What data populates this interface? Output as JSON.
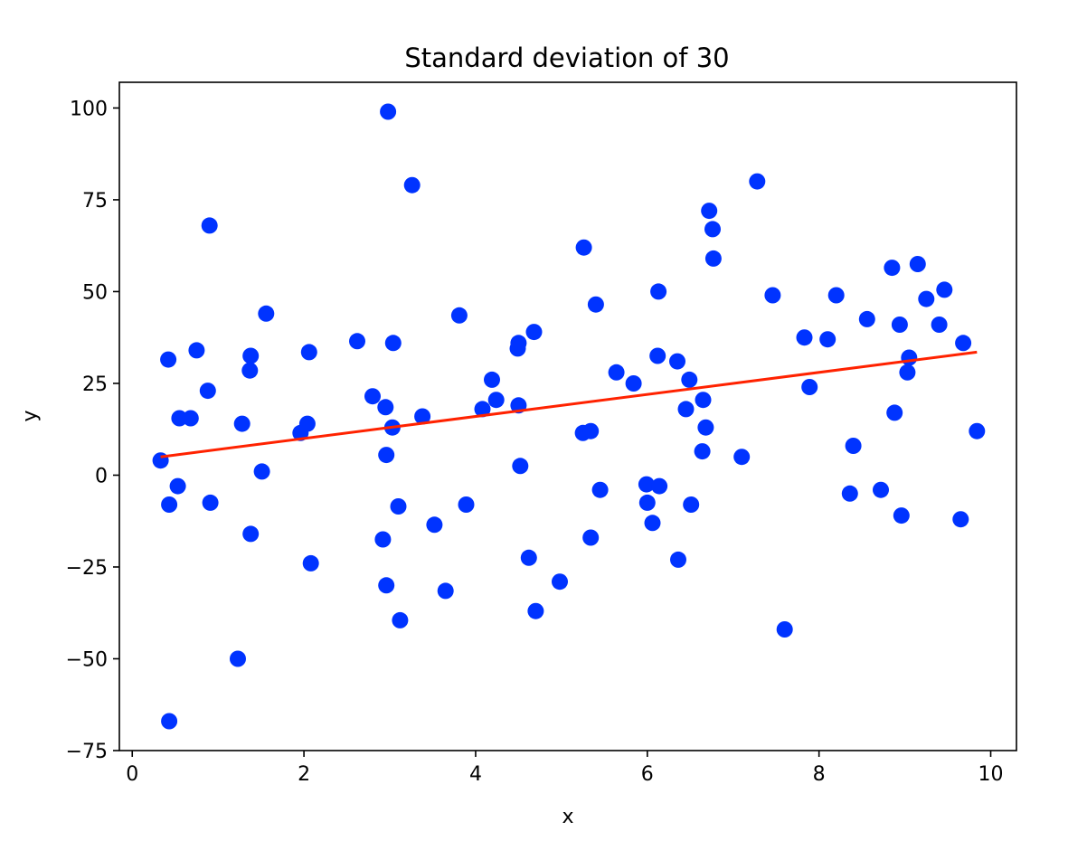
{
  "chart_data": {
    "type": "scatter",
    "title": "Standard deviation of 30",
    "xlabel": "x",
    "ylabel": "y",
    "xlim": [
      -0.15,
      10.3
    ],
    "ylim": [
      -75,
      107
    ],
    "xticks": [
      0,
      2,
      4,
      6,
      8,
      10
    ],
    "yticks": [
      -75,
      -50,
      -25,
      0,
      25,
      50,
      75,
      100
    ],
    "xtick_labels": [
      "0",
      "2",
      "4",
      "6",
      "8",
      "10"
    ],
    "ytick_labels": [
      "−75",
      "−50",
      "−25",
      "0",
      "25",
      "50",
      "75",
      "100"
    ],
    "grid": false,
    "colors": {
      "points": "#0033ff",
      "fit": "#ff2200",
      "axes": "#000000"
    },
    "series": [
      {
        "type": "scatter",
        "points": [
          [
            0.33,
            4
          ],
          [
            0.42,
            31.5
          ],
          [
            0.43,
            -8
          ],
          [
            0.43,
            -67
          ],
          [
            0.53,
            -3
          ],
          [
            0.55,
            15.5
          ],
          [
            0.68,
            15.5
          ],
          [
            0.75,
            34
          ],
          [
            0.88,
            23
          ],
          [
            0.9,
            68
          ],
          [
            0.91,
            -7.5
          ],
          [
            1.23,
            -50
          ],
          [
            1.28,
            14
          ],
          [
            1.37,
            28.5
          ],
          [
            1.38,
            32.5
          ],
          [
            1.38,
            -16
          ],
          [
            1.51,
            1
          ],
          [
            1.56,
            44
          ],
          [
            1.96,
            11.5
          ],
          [
            2.04,
            14
          ],
          [
            2.06,
            33.5
          ],
          [
            2.08,
            -24
          ],
          [
            2.62,
            36.5
          ],
          [
            2.8,
            21.5
          ],
          [
            2.92,
            -17.5
          ],
          [
            2.95,
            18.5
          ],
          [
            2.96,
            5.5
          ],
          [
            2.96,
            -30
          ],
          [
            2.98,
            99
          ],
          [
            3.03,
            13
          ],
          [
            3.04,
            36
          ],
          [
            3.1,
            -8.5
          ],
          [
            3.12,
            -39.5
          ],
          [
            3.26,
            79
          ],
          [
            3.38,
            16
          ],
          [
            3.52,
            -13.5
          ],
          [
            3.65,
            -31.5
          ],
          [
            3.81,
            43.5
          ],
          [
            3.89,
            -8
          ],
          [
            4.08,
            18
          ],
          [
            4.19,
            26
          ],
          [
            4.24,
            20.5
          ],
          [
            4.49,
            34.5
          ],
          [
            4.5,
            36
          ],
          [
            4.5,
            19
          ],
          [
            4.52,
            2.5
          ],
          [
            4.62,
            -22.5
          ],
          [
            4.68,
            39
          ],
          [
            4.7,
            -37
          ],
          [
            4.98,
            -29
          ],
          [
            5.25,
            11.5
          ],
          [
            5.26,
            62
          ],
          [
            5.34,
            12
          ],
          [
            5.34,
            -17
          ],
          [
            5.4,
            46.5
          ],
          [
            5.45,
            -4
          ],
          [
            5.64,
            28
          ],
          [
            5.84,
            25
          ],
          [
            5.99,
            -2.5
          ],
          [
            6.0,
            -7.5
          ],
          [
            6.06,
            -13
          ],
          [
            6.12,
            32.5
          ],
          [
            6.13,
            50
          ],
          [
            6.14,
            -3
          ],
          [
            6.35,
            31
          ],
          [
            6.36,
            -23
          ],
          [
            6.45,
            18
          ],
          [
            6.49,
            26
          ],
          [
            6.51,
            -8
          ],
          [
            6.64,
            6.5
          ],
          [
            6.65,
            20.5
          ],
          [
            6.68,
            13
          ],
          [
            6.72,
            72
          ],
          [
            6.76,
            67
          ],
          [
            6.77,
            59
          ],
          [
            7.1,
            5
          ],
          [
            7.28,
            80
          ],
          [
            7.46,
            49
          ],
          [
            7.6,
            -42
          ],
          [
            7.83,
            37.5
          ],
          [
            7.89,
            24
          ],
          [
            8.1,
            37
          ],
          [
            8.2,
            49
          ],
          [
            8.36,
            -5
          ],
          [
            8.4,
            8
          ],
          [
            8.56,
            42.5
          ],
          [
            8.72,
            -4
          ],
          [
            8.85,
            56.5
          ],
          [
            8.88,
            17
          ],
          [
            8.94,
            41
          ],
          [
            8.96,
            -11
          ],
          [
            9.03,
            28
          ],
          [
            9.05,
            32
          ],
          [
            9.15,
            57.5
          ],
          [
            9.25,
            48
          ],
          [
            9.4,
            41
          ],
          [
            9.46,
            50.5
          ],
          [
            9.65,
            -12
          ],
          [
            9.68,
            36
          ],
          [
            9.84,
            12
          ]
        ]
      },
      {
        "type": "line",
        "points": [
          [
            0.33,
            5
          ],
          [
            9.84,
            33.5
          ]
        ]
      }
    ]
  }
}
